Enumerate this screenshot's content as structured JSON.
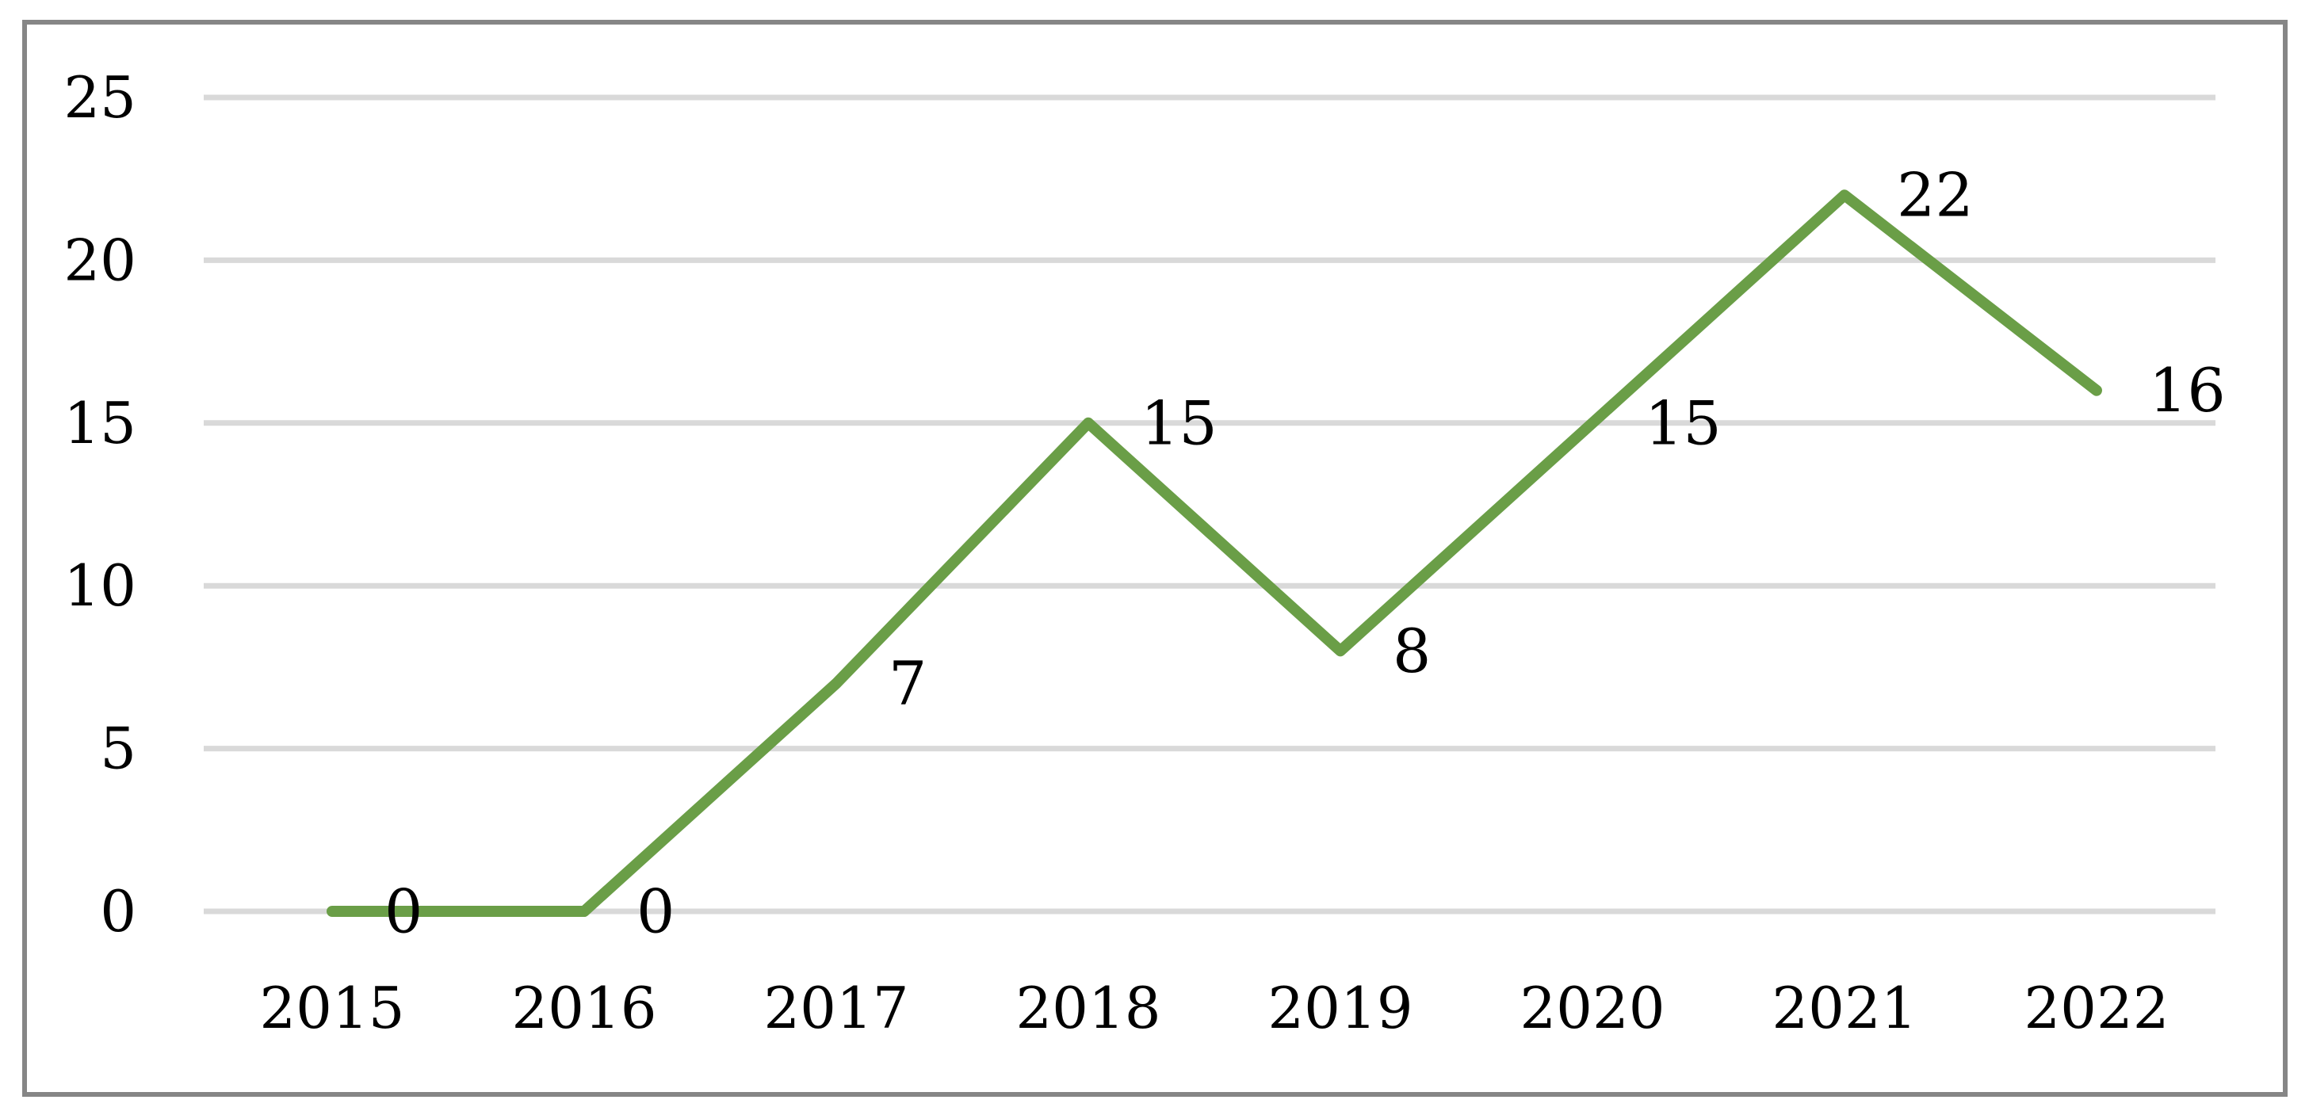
{
  "chart_data": {
    "type": "line",
    "title": "",
    "xlabel": "",
    "ylabel": "",
    "categories": [
      "2015",
      "2016",
      "2017",
      "2018",
      "2019",
      "2020",
      "2021",
      "2022"
    ],
    "series": [
      {
        "name": "values",
        "values": [
          0,
          0,
          7,
          15,
          8,
          15,
          22,
          16
        ]
      }
    ],
    "data_labels": [
      "0",
      "0",
      "7",
      "15",
      "8",
      "15",
      "22",
      "16"
    ],
    "ylim": [
      0,
      25
    ],
    "yticks": [
      0,
      5,
      10,
      15,
      20,
      25
    ],
    "ytick_labels": [
      "0",
      "5",
      "10",
      "15",
      "20",
      "25"
    ],
    "grid": "horizontal-only",
    "legend": "none",
    "markers": "none",
    "colors": {
      "line": "#6A9E47",
      "gridline": "#D9D9D9",
      "frame_border": "#868686",
      "text": "#000000",
      "background": "#FFFFFF"
    }
  }
}
